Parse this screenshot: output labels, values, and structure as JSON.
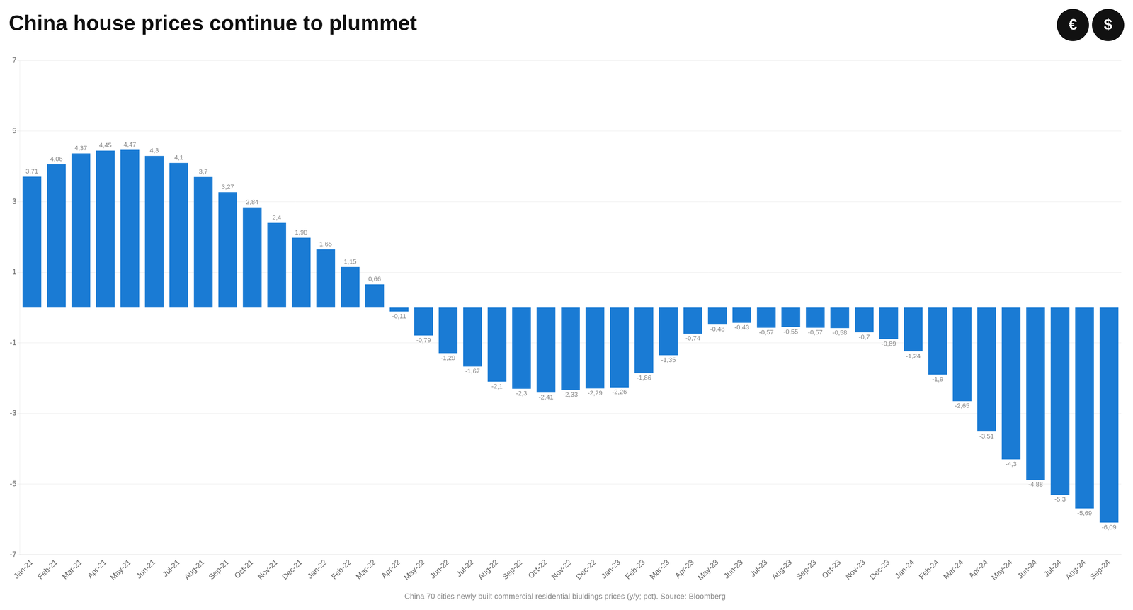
{
  "chart_data": {
    "type": "bar",
    "title": "China house prices continue to plummet",
    "subtitle": "China 70 cities newly built commercial residential biuldings prices (y/y; pct). Source: Bloomberg",
    "categories": [
      "Jan-21",
      "Feb-21",
      "Mar-21",
      "Apr-21",
      "May-21",
      "Jun-21",
      "Jul-21",
      "Aug-21",
      "Sep-21",
      "Oct-21",
      "Nov-21",
      "Dec-21",
      "Jan-22",
      "Feb-22",
      "Mar-22",
      "Apr-22",
      "May-22",
      "Jun-22",
      "Jul-22",
      "Aug-22",
      "Sep-22",
      "Oct-22",
      "Nov-22",
      "Dec-22",
      "Jan-23",
      "Feb-23",
      "Mar-23",
      "Apr-23",
      "May-23",
      "Jun-23",
      "Jul-23",
      "Aug-23",
      "Sep-23",
      "Oct-23",
      "Nov-23",
      "Dec-23",
      "Jan-24",
      "Feb-24",
      "Mar-24",
      "Apr-24",
      "May-24",
      "Jun-24",
      "Jul-24",
      "Aug-24",
      "Sep-24"
    ],
    "values": [
      3.71,
      4.06,
      4.37,
      4.45,
      4.47,
      4.3,
      4.1,
      3.7,
      3.27,
      2.84,
      2.4,
      1.98,
      1.65,
      1.15,
      0.66,
      -0.11,
      -0.79,
      -1.29,
      -1.67,
      -2.1,
      -2.3,
      -2.41,
      -2.33,
      -2.29,
      -2.26,
      -1.86,
      -1.35,
      -0.74,
      -0.48,
      -0.43,
      -0.57,
      -0.55,
      -0.57,
      -0.58,
      -0.7,
      -0.89,
      -1.24,
      -1.9,
      -2.65,
      -3.51,
      -4.3,
      -4.88,
      -5.3,
      -5.69,
      -6.09
    ],
    "value_labels": [
      "3,71",
      "4,06",
      "4,37",
      "4,45",
      "4,47",
      "4,3",
      "4,1",
      "3,7",
      "3,27",
      "2,84",
      "2,4",
      "1,98",
      "1,65",
      "1,15",
      "0,66",
      "-0,11",
      "-0,79",
      "-1,29",
      "-1,67",
      "-2,1",
      "-2,3",
      "-2,41",
      "-2,33",
      "-2,29",
      "-2,26",
      "-1,86",
      "-1,35",
      "-0,74",
      "-0,48",
      "-0,43",
      "-0,57",
      "-0,55",
      "-0,57",
      "-0,58",
      "-0,7",
      "-0,89",
      "-1,24",
      "-1,9",
      "-2,65",
      "-3,51",
      "-4,3",
      "-4,88",
      "-5,3",
      "-5,69",
      "-6,09"
    ],
    "color": "#1a7bd4",
    "ylim": [
      -7,
      7
    ],
    "yticks": [
      -7,
      -5,
      -3,
      -1,
      1,
      3,
      5,
      7
    ],
    "grid": true,
    "annotations": [
      {
        "text": "€",
        "color": "#111111"
      },
      {
        "text": "$",
        "color": "#111111"
      }
    ]
  }
}
